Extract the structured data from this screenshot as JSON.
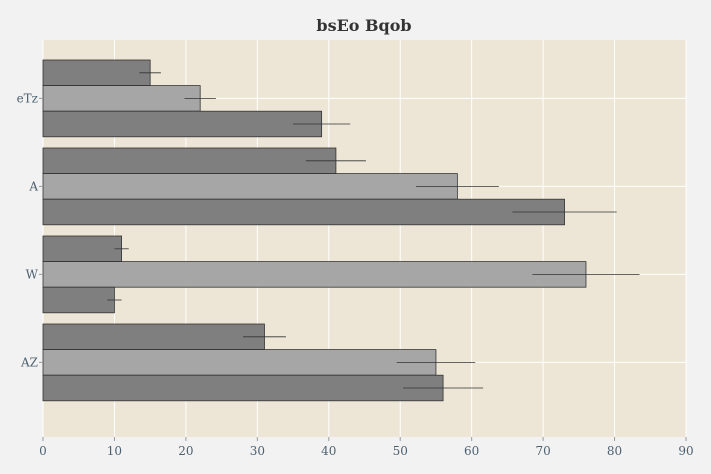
{
  "chart_data": {
    "type": "bar",
    "orientation": "horizontal",
    "title": "bsEo Bqob",
    "xlabel": "",
    "ylabel": "",
    "categories": [
      "eTz",
      "A",
      "W",
      "AZ"
    ],
    "series": [
      {
        "values": [
          15,
          41,
          11,
          31
        ],
        "errors": [
          1.5,
          4.2,
          1.0,
          3.0
        ],
        "color": "#7f7f7f"
      },
      {
        "values": [
          22,
          58,
          76,
          55
        ],
        "errors": [
          2.2,
          5.8,
          7.5,
          5.5
        ],
        "color": "#a6a6a6"
      },
      {
        "values": [
          39,
          73,
          10,
          56
        ],
        "errors": [
          4.0,
          7.3,
          1.0,
          5.6
        ],
        "color": "#7f7f7f"
      }
    ],
    "xlim": [
      0,
      90
    ],
    "xticks": [
      0,
      10,
      20,
      30,
      40,
      50,
      60,
      70,
      80,
      90
    ],
    "grid": true,
    "legend": "none",
    "colors": {
      "page_background": "#f2f2f2",
      "plot_background": "#ede6d6",
      "grid": "#ffffff",
      "bar_edge": "#333333",
      "error_bar": "#333333",
      "tick_label": "#4d6170"
    }
  }
}
